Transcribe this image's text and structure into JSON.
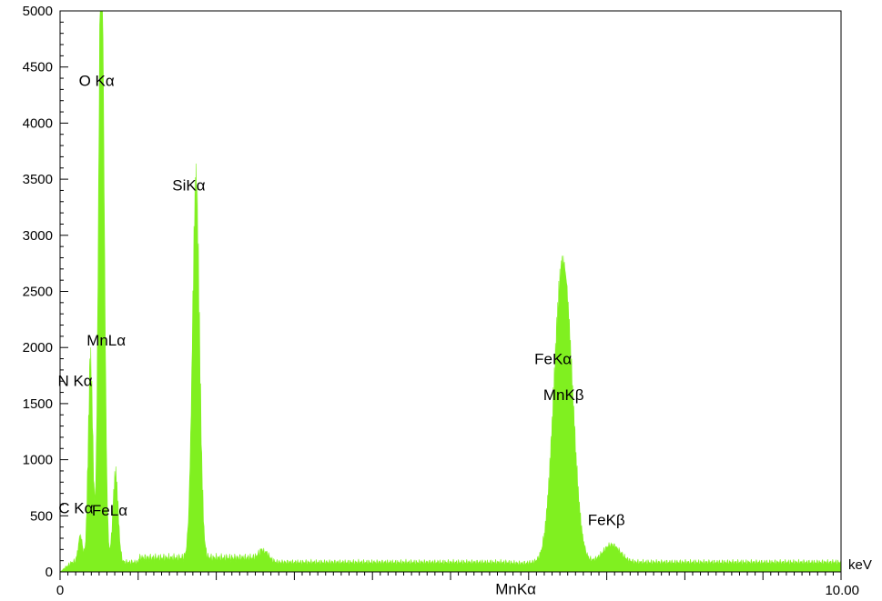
{
  "chart_data": {
    "type": "area",
    "title": "",
    "xlabel": "",
    "ylabel": "",
    "x_unit_label": "keV",
    "xlim": [
      0,
      10
    ],
    "ylim": [
      0,
      5000
    ],
    "x_ticks": [
      {
        "value": 0,
        "label": "0"
      },
      {
        "value": 10,
        "label": "10.00"
      }
    ],
    "y_ticks": [
      {
        "value": 0,
        "label": "0"
      },
      {
        "value": 500,
        "label": "500"
      },
      {
        "value": 1000,
        "label": "1000"
      },
      {
        "value": 1500,
        "label": "1500"
      },
      {
        "value": 2000,
        "label": "2000"
      },
      {
        "value": 2500,
        "label": "2500"
      },
      {
        "value": 3000,
        "label": "3000"
      },
      {
        "value": 3500,
        "label": "3500"
      },
      {
        "value": 4000,
        "label": "4000"
      },
      {
        "value": 4500,
        "label": "4500"
      },
      {
        "value": 5000,
        "label": "5000"
      }
    ],
    "fill_color": "#80f020",
    "background": 85,
    "peaks": [
      {
        "label": "C Kα",
        "energy": 0.26,
        "counts": 310
      },
      {
        "label": "N Kα",
        "energy": 0.39,
        "counts": 1850
      },
      {
        "label": "O Kα",
        "energy": 0.52,
        "counts": 4300
      },
      {
        "label": "MnLα",
        "energy": 0.55,
        "counts": 2100
      },
      {
        "label": "FeLα",
        "energy": 0.71,
        "counts": 860
      },
      {
        "label": "SiKα",
        "energy": 1.74,
        "counts": 3350
      },
      {
        "label": "",
        "energy": 2.62,
        "counts": 180
      },
      {
        "label": "MnKα",
        "energy": 5.9,
        "counts": 75
      },
      {
        "label": "FeKα",
        "energy": 6.4,
        "counts": 1610
      },
      {
        "label": "MnKβ",
        "energy": 6.49,
        "counts": 1500
      },
      {
        "label": "FeKβ",
        "energy": 7.06,
        "counts": 240
      }
    ]
  }
}
